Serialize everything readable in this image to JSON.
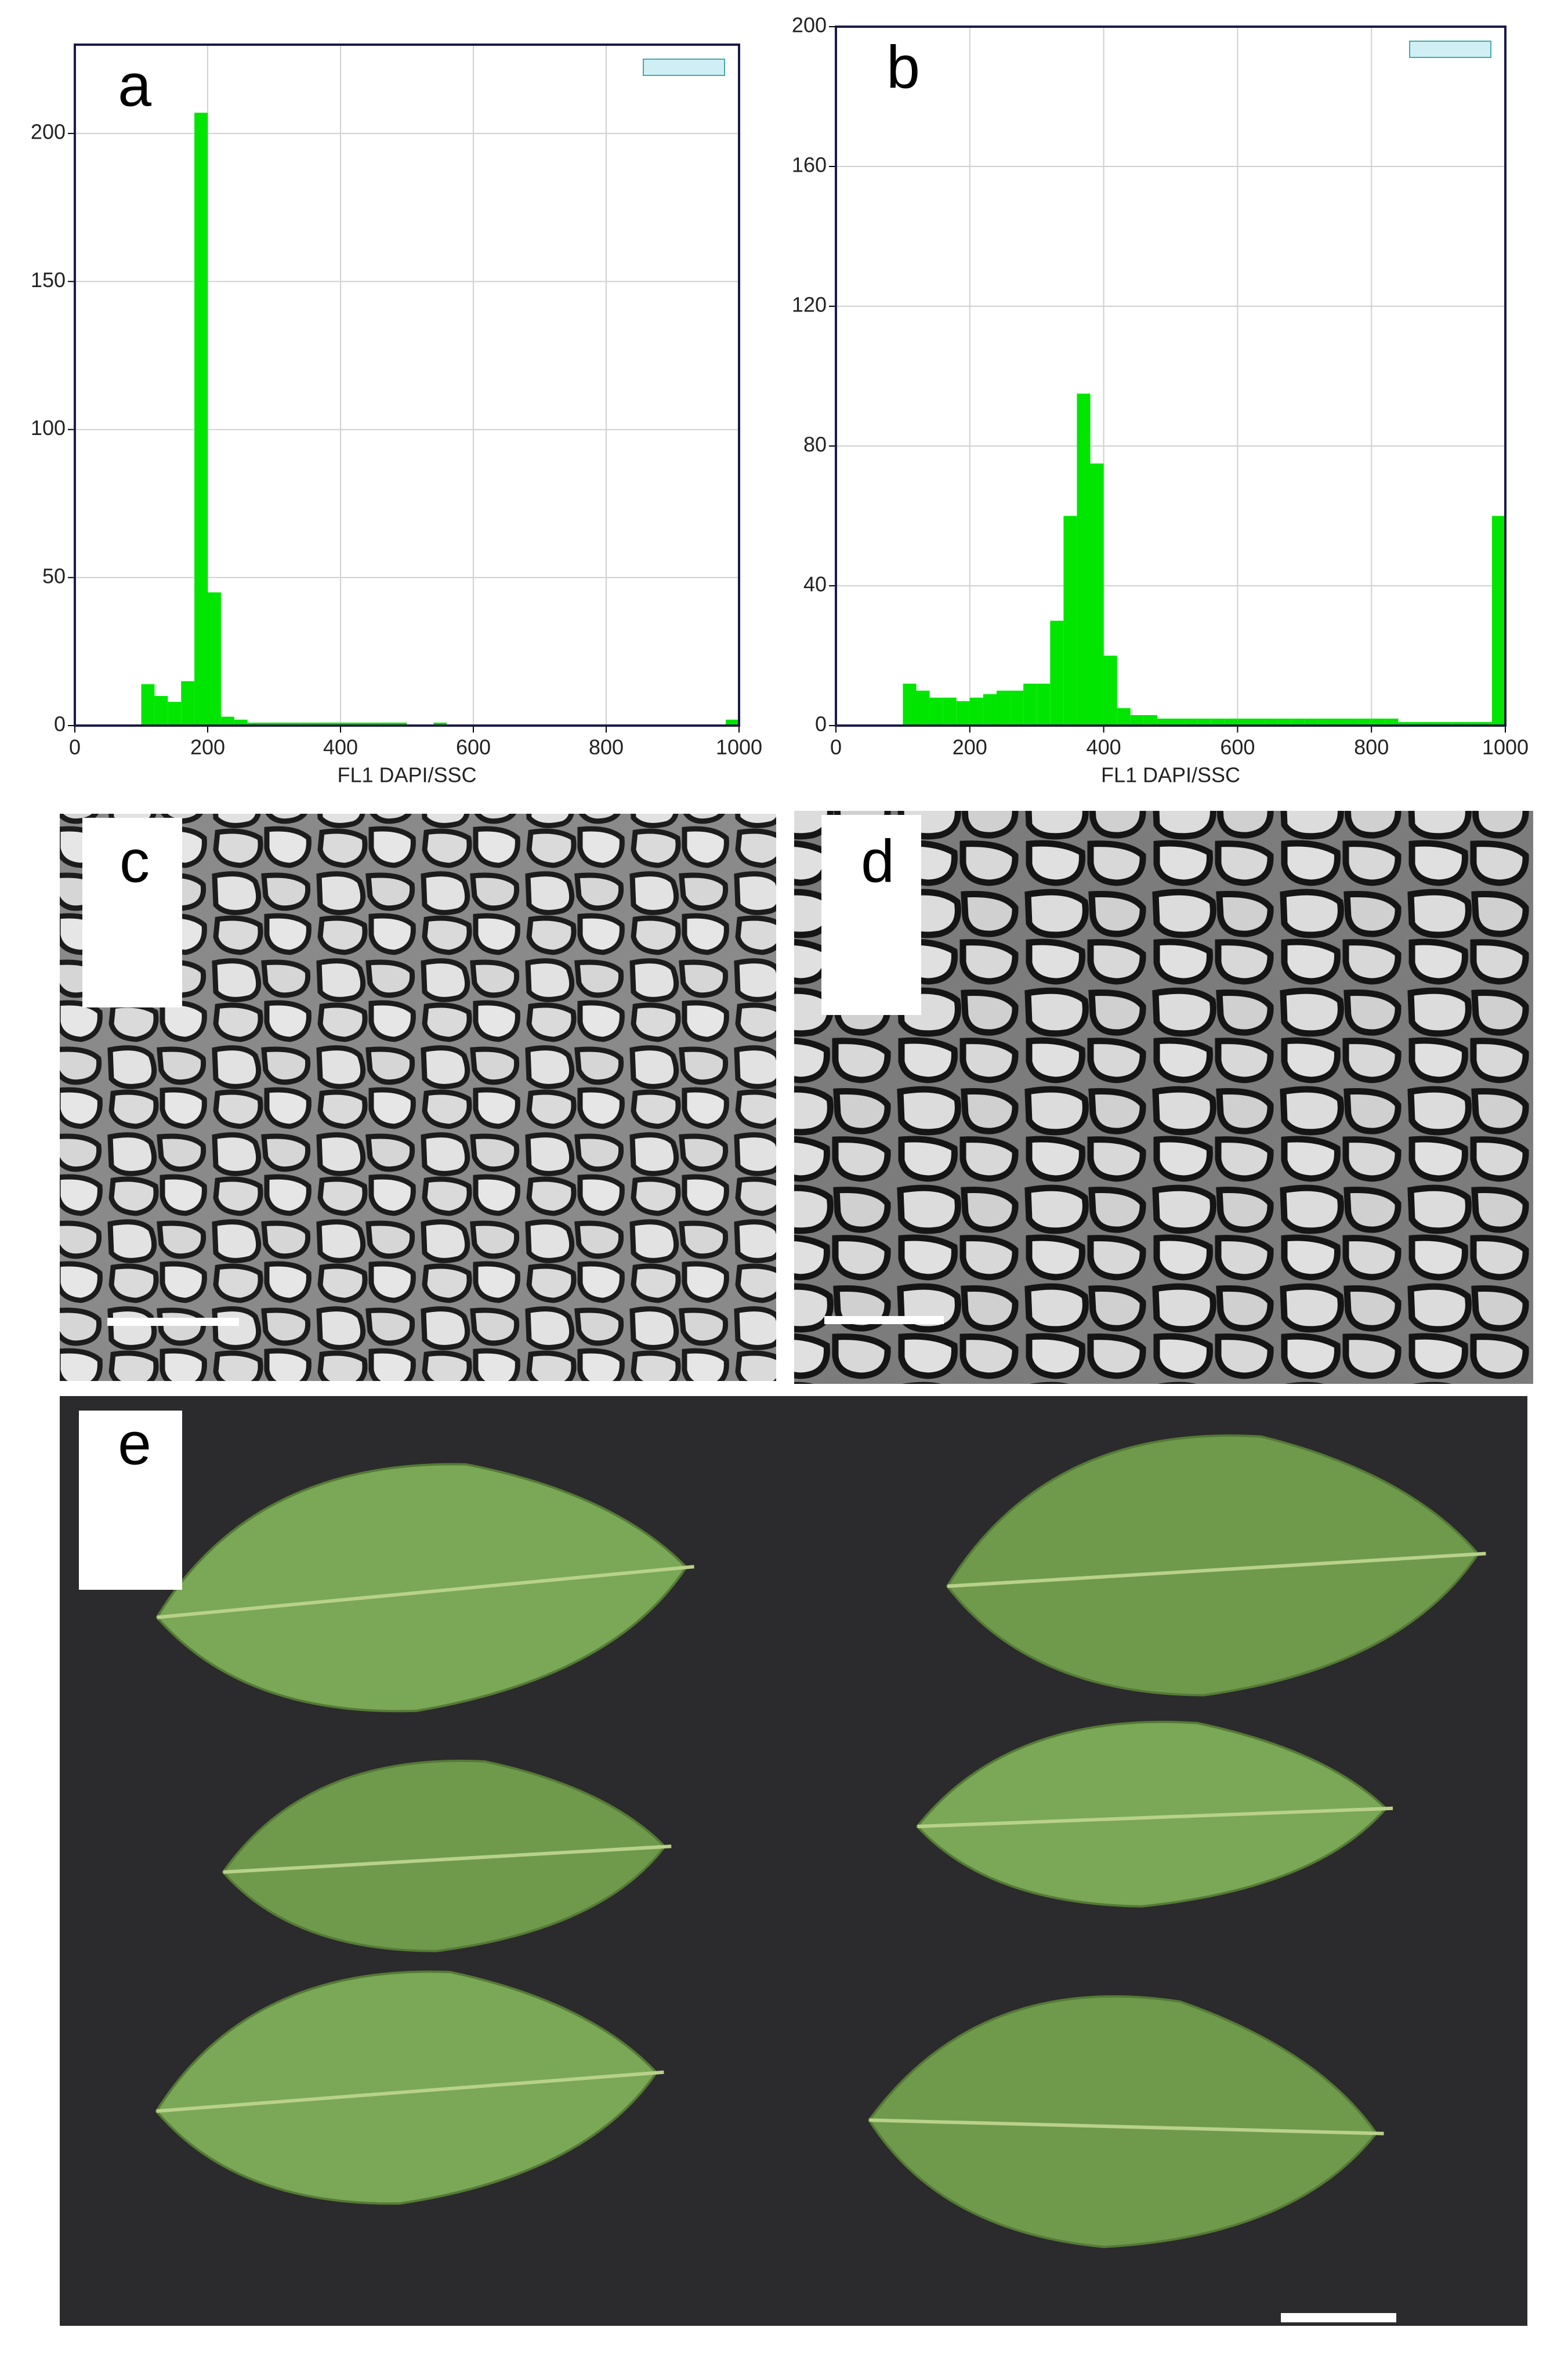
{
  "chart_data": [
    {
      "type": "histogram",
      "label": "a",
      "xlabel": "FL1 DAPI/SSC",
      "color": "#00e600",
      "grid": true,
      "bins": [
        100,
        120,
        140,
        160,
        180,
        200,
        220,
        240,
        260,
        280,
        300,
        320,
        340,
        360,
        380,
        400,
        420,
        440,
        460,
        480,
        500,
        520,
        540,
        560,
        580,
        600,
        620,
        640,
        660,
        680,
        700,
        720,
        740,
        760,
        780,
        800,
        820,
        840,
        860,
        880,
        900,
        920,
        940,
        960,
        980,
        1000
      ],
      "counts": [
        14,
        10,
        8,
        15,
        207,
        45,
        3,
        2,
        1,
        1,
        1,
        1,
        1,
        1,
        1,
        1,
        1,
        1,
        1,
        1,
        0,
        0,
        1,
        0,
        0,
        0,
        0,
        0,
        0,
        0,
        0,
        0,
        0,
        0,
        0,
        0,
        0,
        0,
        0,
        0,
        0,
        0,
        0,
        0,
        2
      ],
      "xlim": [
        0,
        1000
      ],
      "xticks": [
        0,
        200,
        400,
        600,
        800,
        1000
      ],
      "ylim": [
        0,
        230
      ],
      "yticks": [
        0,
        50,
        100,
        150,
        200
      ]
    },
    {
      "type": "histogram",
      "label": "b",
      "xlabel": "FL1 DAPI/SSC",
      "color": "#00e600",
      "grid": true,
      "bins": [
        100,
        120,
        140,
        160,
        180,
        200,
        220,
        240,
        260,
        280,
        300,
        320,
        340,
        360,
        380,
        400,
        420,
        440,
        460,
        480,
        500,
        520,
        540,
        560,
        580,
        600,
        620,
        640,
        660,
        680,
        700,
        720,
        740,
        760,
        780,
        800,
        820,
        840,
        860,
        880,
        900,
        920,
        940,
        960,
        980,
        1000
      ],
      "counts": [
        12,
        10,
        8,
        8,
        7,
        8,
        9,
        10,
        10,
        12,
        12,
        30,
        60,
        95,
        75,
        20,
        5,
        3,
        3,
        2,
        2,
        2,
        2,
        2,
        2,
        2,
        2,
        2,
        2,
        2,
        2,
        2,
        2,
        2,
        2,
        2,
        2,
        1,
        1,
        1,
        1,
        1,
        1,
        1,
        60
      ],
      "xlim": [
        0,
        1000
      ],
      "xticks": [
        0,
        200,
        400,
        600,
        800,
        1000
      ],
      "ylim": [
        0,
        200
      ],
      "yticks": [
        0,
        40,
        80,
        120,
        160,
        200
      ]
    }
  ],
  "images": [
    {
      "label": "c"
    },
    {
      "label": "d"
    },
    {
      "label": "e"
    }
  ]
}
